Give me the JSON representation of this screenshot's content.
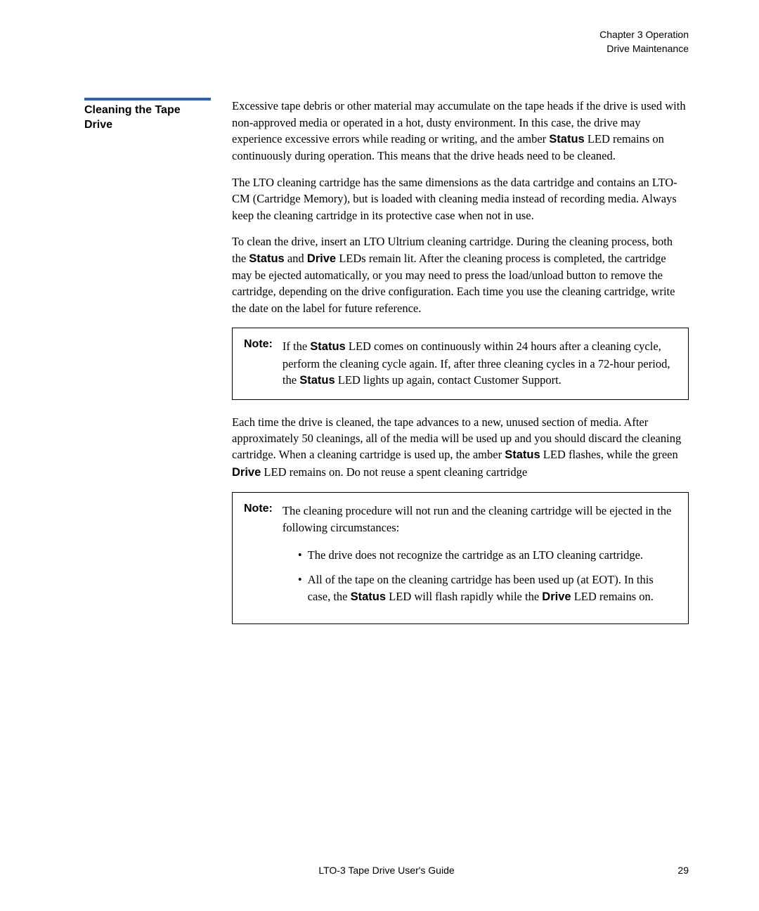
{
  "header": {
    "line1": "Chapter 3  Operation",
    "line2": "Drive Maintenance"
  },
  "sidebar": {
    "title": "Cleaning the Tape Drive"
  },
  "para1": {
    "t1": "Excessive tape debris or other material may accumulate on the tape heads if the drive is used with non-approved media or operated in a hot, dusty environment. In this case, the drive may experience excessive errors while reading or writing, and the amber ",
    "b1": "Status",
    "t2": " LED remains on continuously during operation. This means that the drive heads need to be cleaned."
  },
  "para2": "The LTO cleaning cartridge has the same dimensions as the data cartridge and contains an LTO-CM (Cartridge Memory), but is loaded with cleaning media instead of recording media. Always keep the cleaning cartridge in its protective case when not in use.",
  "para3": {
    "t1": "To clean the drive, insert an LTO Ultrium cleaning cartridge. During the cleaning process, both the ",
    "b1": "Status",
    "t2": " and ",
    "b2": "Drive",
    "t3": " LEDs remain lit. After the cleaning process is completed, the cartridge may be ejected automatically, or you may need to press the load/unload button to remove the cartridge, depending on the drive configuration. Each time you use the cleaning cartridge, write the date on the label for future reference."
  },
  "note1": {
    "label": "Note:",
    "t1": "If the ",
    "b1": "Status",
    "t2": " LED comes on continuously within 24 hours after a cleaning cycle, perform the cleaning cycle again. If, after three cleaning cycles in a 72-hour period, the ",
    "b2": "Status",
    "t3": " LED lights up again, contact Customer Support."
  },
  "para4": {
    "t1": "Each time the drive is cleaned, the tape advances to a new, unused section of media. After approximately 50 cleanings, all of the media will be used up and you should discard the cleaning cartridge. When a cleaning cartridge is used up, the amber ",
    "b1": "Status",
    "t2": " LED flashes, while the green ",
    "b2": "Drive",
    "t3": " LED remains on. Do not reuse a spent cleaning cartridge"
  },
  "note2": {
    "label": "Note:",
    "intro": "The cleaning procedure will not run and the cleaning cartridge will be ejected in the following circumstances:",
    "li1": "The drive does not recognize the cartridge as an LTO cleaning cartridge.",
    "li2": {
      "t1": "All of the tape on the cleaning cartridge has been used up (at EOT). In this case, the ",
      "b1": "Status",
      "t2": " LED will flash rapidly while the ",
      "b2": "Drive",
      "t3": " LED remains on."
    }
  },
  "footer": {
    "center": "LTO-3 Tape Drive User's Guide",
    "pagenum": "29"
  }
}
